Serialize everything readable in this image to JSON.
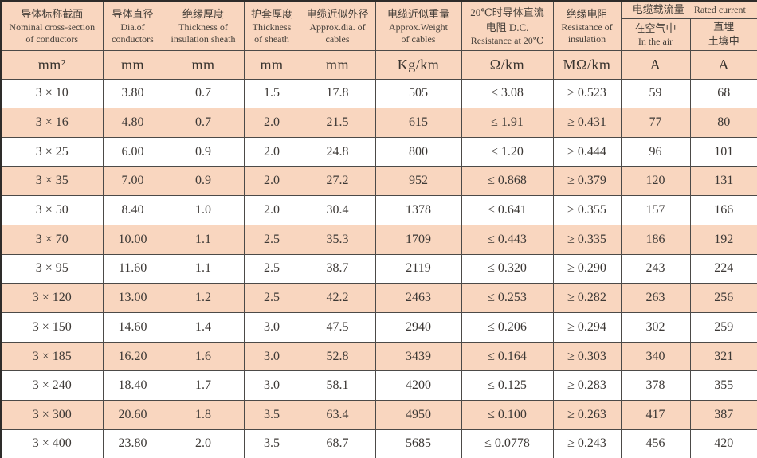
{
  "table": {
    "headers": [
      {
        "name": "nominal-cross-section",
        "lines": [
          "导体标称截面",
          "Nominal cross-section",
          "of conductors"
        ]
      },
      {
        "name": "conductor-diameter",
        "lines": [
          "导体直径",
          "Dia.of",
          "conductors"
        ]
      },
      {
        "name": "insulation-thickness",
        "lines": [
          "绝缘厚度",
          "Thickness of",
          "insulation sheath"
        ]
      },
      {
        "name": "sheath-thickness",
        "lines": [
          "护套厚度",
          "Thickness",
          "of sheath"
        ]
      },
      {
        "name": "approx-diameter",
        "lines": [
          "电缆近似外径",
          "Approx.dia. of",
          "cables"
        ]
      },
      {
        "name": "approx-weight",
        "lines": [
          "电缆近似重量",
          "Approx.Weight",
          "of cables"
        ]
      },
      {
        "name": "dc-resistance",
        "lines": [
          "20℃时导体直流",
          "电阻 D.C.",
          "Resistance at 20℃"
        ]
      },
      {
        "name": "insulation-resistance",
        "lines": [
          "绝缘电阻",
          "Resistance of",
          "insulation"
        ]
      }
    ],
    "group": {
      "cn": "电缆载流量",
      "en": "Rated current"
    },
    "sub_headers": [
      {
        "lines": [
          "在空气中",
          "In the air"
        ]
      },
      {
        "lines": [
          "直埋",
          "土壤中"
        ]
      }
    ],
    "units": [
      "mm²",
      "mm",
      "mm",
      "mm",
      "mm",
      "Kg/km",
      "Ω/km",
      "MΩ/km",
      "A",
      "A"
    ],
    "rows": [
      [
        "3 × 10",
        "3.80",
        "0.7",
        "1.5",
        "17.8",
        "505",
        "≤ 3.08",
        "≥ 0.523",
        "59",
        "68"
      ],
      [
        "3 × 16",
        "4.80",
        "0.7",
        "2.0",
        "21.5",
        "615",
        "≤ 1.91",
        "≥ 0.431",
        "77",
        "80"
      ],
      [
        "3 × 25",
        "6.00",
        "0.9",
        "2.0",
        "24.8",
        "800",
        "≤ 1.20",
        "≥ 0.444",
        "96",
        "101"
      ],
      [
        "3 × 35",
        "7.00",
        "0.9",
        "2.0",
        "27.2",
        "952",
        "≤ 0.868",
        "≥ 0.379",
        "120",
        "131"
      ],
      [
        "3 × 50",
        "8.40",
        "1.0",
        "2.0",
        "30.4",
        "1378",
        "≤ 0.641",
        "≥ 0.355",
        "157",
        "166"
      ],
      [
        "3 × 70",
        "10.00",
        "1.1",
        "2.5",
        "35.3",
        "1709",
        "≤ 0.443",
        "≥ 0.335",
        "186",
        "192"
      ],
      [
        "3 × 95",
        "11.60",
        "1.1",
        "2.5",
        "38.7",
        "2119",
        "≤ 0.320",
        "≥ 0.290",
        "243",
        "224"
      ],
      [
        "3 × 120",
        "13.00",
        "1.2",
        "2.5",
        "42.2",
        "2463",
        "≤ 0.253",
        "≥ 0.282",
        "263",
        "256"
      ],
      [
        "3 × 150",
        "14.60",
        "1.4",
        "3.0",
        "47.5",
        "2940",
        "≤ 0.206",
        "≥ 0.294",
        "302",
        "259"
      ],
      [
        "3 × 185",
        "16.20",
        "1.6",
        "3.0",
        "52.8",
        "3439",
        "≤ 0.164",
        "≥ 0.303",
        "340",
        "321"
      ],
      [
        "3 × 240",
        "18.40",
        "1.7",
        "3.0",
        "58.1",
        "4200",
        "≤ 0.125",
        "≥ 0.283",
        "378",
        "355"
      ],
      [
        "3 × 300",
        "20.60",
        "1.8",
        "3.5",
        "63.4",
        "4950",
        "≤ 0.100",
        "≥ 0.263",
        "417",
        "387"
      ],
      [
        "3 × 400",
        "23.80",
        "2.0",
        "3.5",
        "68.7",
        "5685",
        "≤ 0.0778",
        "≥ 0.243",
        "456",
        "420"
      ]
    ]
  },
  "colors": {
    "row_alt_bg": "#f9d6bf",
    "header_bg": "#f9d6bf",
    "border": "#4c4a48",
    "text": "#3c3835"
  }
}
